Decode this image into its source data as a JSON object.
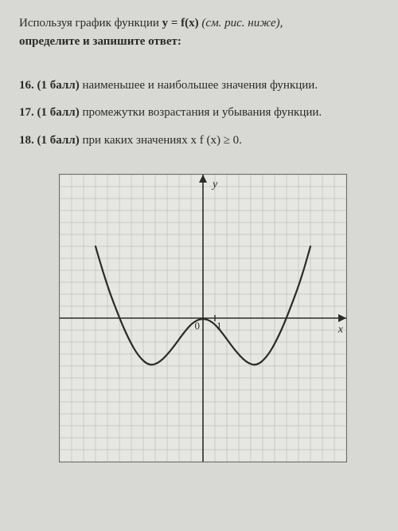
{
  "intro": {
    "prefix": "Используя  график  функции  ",
    "formula": "y = f(x)",
    "hint": " (см. рис. ниже),",
    "line2": "определите  и  запишите ответ:"
  },
  "tasks": [
    {
      "num": "16.",
      "pts": "(1 балл)",
      "text": "  наименьшее  и  наибольшее значения функции."
    },
    {
      "num": "17.",
      "pts": "(1 балл)",
      "text": "  промежутки возрастания и убывания функции."
    },
    {
      "num": "18.",
      "pts": "(1 балл)",
      "text": "  при каких значениях x  f (x) ≥ 0."
    }
  ],
  "chart": {
    "label_y": "y",
    "label_x": "x",
    "label_o": "0",
    "label_1": "1",
    "grid": {
      "cols": 24,
      "rows": 24,
      "cell": 15,
      "color": "#bfbfb9",
      "stroke": 0.7
    },
    "axes": {
      "color": "#2a2a28",
      "stroke": 1.6,
      "origin_col": 12,
      "origin_row": 12
    },
    "curve": {
      "color": "#2a2a28",
      "stroke": 2.2,
      "points": [
        [
          -9,
          6
        ],
        [
          -8.2,
          3.2
        ],
        [
          -7,
          0
        ],
        [
          -6.2,
          -1.8
        ],
        [
          -5.4,
          -3.2
        ],
        [
          -4.5,
          -4.0
        ],
        [
          -3.6,
          -3.7
        ],
        [
          -2.6,
          -2.6
        ],
        [
          -1.6,
          -1.2
        ],
        [
          -0.8,
          -0.3
        ],
        [
          0,
          0
        ],
        [
          0.8,
          -0.3
        ],
        [
          1.6,
          -1.2
        ],
        [
          2.6,
          -2.6
        ],
        [
          3.6,
          -3.7
        ],
        [
          4.5,
          -4.0
        ],
        [
          5.4,
          -3.2
        ],
        [
          6.2,
          -1.8
        ],
        [
          7,
          0
        ],
        [
          8.2,
          3.2
        ],
        [
          9,
          6
        ]
      ]
    }
  }
}
